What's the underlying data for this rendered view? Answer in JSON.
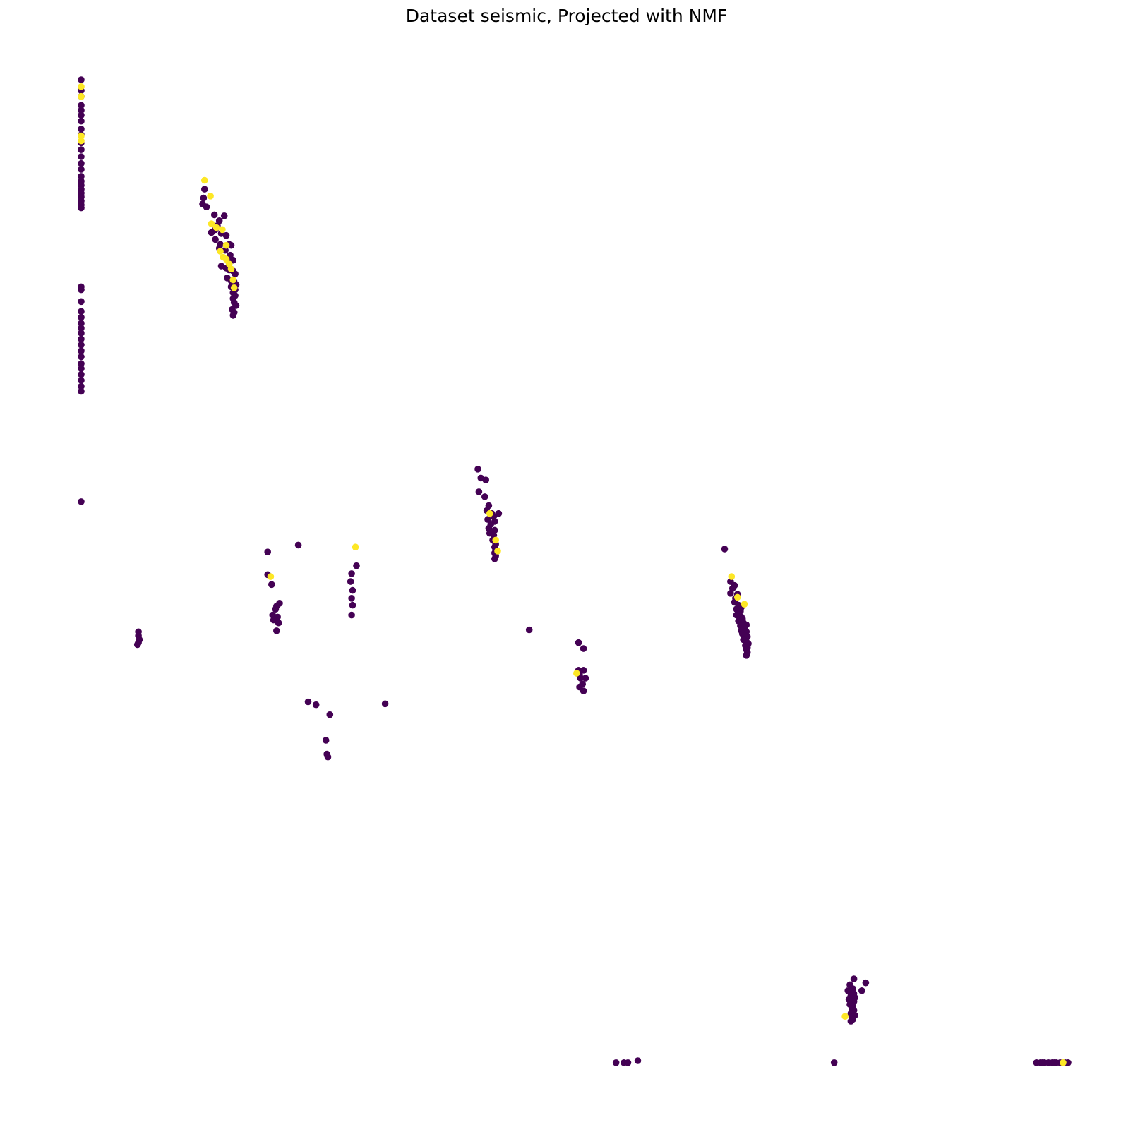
{
  "chart_data": {
    "type": "scatter",
    "title": "Dataset seismic, Projected with NMF",
    "xlabel": "",
    "ylabel": "",
    "axes_visible": false,
    "grid": false,
    "xlim": [
      0,
      1
    ],
    "ylim": [
      0,
      1
    ],
    "colors": {
      "class_0": "#440154",
      "class_1": "#fde725"
    },
    "series": [
      {
        "class": 0,
        "color": "#440154",
        "points": [
          [
            0.0,
            1.0
          ],
          [
            0.0,
            0.989
          ],
          [
            0.0,
            0.983
          ],
          [
            0.0,
            0.974
          ],
          [
            0.0,
            0.969
          ],
          [
            0.0,
            0.964
          ],
          [
            0.0,
            0.958
          ],
          [
            0.0,
            0.95
          ],
          [
            0.0,
            0.944
          ],
          [
            0.0,
            0.936
          ],
          [
            0.0,
            0.929
          ],
          [
            0.0,
            0.922
          ],
          [
            0.0,
            0.915
          ],
          [
            0.0,
            0.909
          ],
          [
            0.0,
            0.902
          ],
          [
            0.0,
            0.897
          ],
          [
            0.0,
            0.893
          ],
          [
            0.0,
            0.889
          ],
          [
            0.0,
            0.885
          ],
          [
            0.0,
            0.881
          ],
          [
            0.0,
            0.877
          ],
          [
            0.0,
            0.873
          ],
          [
            0.0,
            0.87
          ],
          [
            0.0,
            0.79
          ],
          [
            0.0,
            0.787
          ],
          [
            0.0,
            0.775
          ],
          [
            0.0,
            0.765
          ],
          [
            0.0,
            0.759
          ],
          [
            0.0,
            0.753
          ],
          [
            0.0,
            0.748
          ],
          [
            0.0,
            0.743
          ],
          [
            0.0,
            0.737
          ],
          [
            0.0,
            0.731
          ],
          [
            0.0,
            0.725
          ],
          [
            0.0,
            0.719
          ],
          [
            0.0,
            0.712
          ],
          [
            0.0,
            0.707
          ],
          [
            0.0,
            0.701
          ],
          [
            0.0,
            0.695
          ],
          [
            0.0,
            0.689
          ],
          [
            0.0,
            0.684
          ],
          [
            0.0,
            0.572
          ],
          [
            0.125,
            0.889
          ],
          [
            0.124,
            0.88
          ],
          [
            0.123,
            0.874
          ],
          [
            0.127,
            0.871
          ],
          [
            0.135,
            0.863
          ],
          [
            0.145,
            0.862
          ],
          [
            0.14,
            0.857
          ],
          [
            0.138,
            0.852
          ],
          [
            0.136,
            0.848
          ],
          [
            0.132,
            0.845
          ],
          [
            0.142,
            0.844
          ],
          [
            0.147,
            0.842
          ],
          [
            0.136,
            0.838
          ],
          [
            0.141,
            0.833
          ],
          [
            0.15,
            0.833
          ],
          [
            0.152,
            0.832
          ],
          [
            0.14,
            0.829
          ],
          [
            0.146,
            0.827
          ],
          [
            0.151,
            0.822
          ],
          [
            0.154,
            0.817
          ],
          [
            0.149,
            0.816
          ],
          [
            0.142,
            0.811
          ],
          [
            0.147,
            0.809
          ],
          [
            0.15,
            0.807
          ],
          [
            0.154,
            0.806
          ],
          [
            0.156,
            0.803
          ],
          [
            0.148,
            0.799
          ],
          [
            0.152,
            0.796
          ],
          [
            0.155,
            0.795
          ],
          [
            0.157,
            0.792
          ],
          [
            0.152,
            0.79
          ],
          [
            0.156,
            0.787
          ],
          [
            0.154,
            0.784
          ],
          [
            0.156,
            0.781
          ],
          [
            0.154,
            0.778
          ],
          [
            0.155,
            0.774
          ],
          [
            0.157,
            0.771
          ],
          [
            0.153,
            0.767
          ],
          [
            0.155,
            0.764
          ],
          [
            0.154,
            0.761
          ],
          [
            0.058,
            0.44
          ],
          [
            0.058,
            0.436
          ],
          [
            0.059,
            0.432
          ],
          [
            0.058,
            0.429
          ],
          [
            0.057,
            0.427
          ],
          [
            0.189,
            0.521
          ],
          [
            0.189,
            0.498
          ],
          [
            0.193,
            0.488
          ],
          [
            0.201,
            0.469
          ],
          [
            0.198,
            0.466
          ],
          [
            0.197,
            0.463
          ],
          [
            0.194,
            0.457
          ],
          [
            0.199,
            0.455
          ],
          [
            0.195,
            0.452
          ],
          [
            0.2,
            0.449
          ],
          [
            0.198,
            0.441
          ],
          [
            0.22,
            0.528
          ],
          [
            0.279,
            0.507
          ],
          [
            0.274,
            0.499
          ],
          [
            0.273,
            0.491
          ],
          [
            0.275,
            0.482
          ],
          [
            0.274,
            0.474
          ],
          [
            0.275,
            0.467
          ],
          [
            0.274,
            0.457
          ],
          [
            0.23,
            0.369
          ],
          [
            0.238,
            0.366
          ],
          [
            0.252,
            0.356
          ],
          [
            0.248,
            0.33
          ],
          [
            0.249,
            0.316
          ],
          [
            0.25,
            0.313
          ],
          [
            0.308,
            0.367
          ],
          [
            0.402,
            0.605
          ],
          [
            0.405,
            0.596
          ],
          [
            0.41,
            0.594
          ],
          [
            0.403,
            0.582
          ],
          [
            0.409,
            0.577
          ],
          [
            0.413,
            0.568
          ],
          [
            0.411,
            0.563
          ],
          [
            0.416,
            0.56
          ],
          [
            0.423,
            0.56
          ],
          [
            0.418,
            0.557
          ],
          [
            0.412,
            0.554
          ],
          [
            0.419,
            0.552
          ],
          [
            0.415,
            0.549
          ],
          [
            0.413,
            0.545
          ],
          [
            0.419,
            0.543
          ],
          [
            0.414,
            0.54
          ],
          [
            0.418,
            0.538
          ],
          [
            0.417,
            0.533
          ],
          [
            0.419,
            0.532
          ],
          [
            0.42,
            0.529
          ],
          [
            0.419,
            0.526
          ],
          [
            0.42,
            0.523
          ],
          [
            0.419,
            0.52
          ],
          [
            0.42,
            0.517
          ],
          [
            0.419,
            0.514
          ],
          [
            0.454,
            0.442
          ],
          [
            0.504,
            0.429
          ],
          [
            0.509,
            0.423
          ],
          [
            0.504,
            0.401
          ],
          [
            0.509,
            0.401
          ],
          [
            0.505,
            0.396
          ],
          [
            0.506,
            0.393
          ],
          [
            0.511,
            0.393
          ],
          [
            0.508,
            0.387
          ],
          [
            0.505,
            0.384
          ],
          [
            0.509,
            0.38
          ],
          [
            0.542,
            0.003
          ],
          [
            0.55,
            0.003
          ],
          [
            0.554,
            0.003
          ],
          [
            0.564,
            0.005
          ],
          [
            0.652,
            0.524
          ],
          [
            0.658,
            0.491
          ],
          [
            0.662,
            0.487
          ],
          [
            0.66,
            0.484
          ],
          [
            0.658,
            0.479
          ],
          [
            0.665,
            0.478
          ],
          [
            0.663,
            0.474
          ],
          [
            0.662,
            0.47
          ],
          [
            0.666,
            0.467
          ],
          [
            0.669,
            0.465
          ],
          [
            0.664,
            0.463
          ],
          [
            0.668,
            0.461
          ],
          [
            0.664,
            0.457
          ],
          [
            0.669,
            0.455
          ],
          [
            0.67,
            0.453
          ],
          [
            0.666,
            0.451
          ],
          [
            0.671,
            0.449
          ],
          [
            0.674,
            0.447
          ],
          [
            0.668,
            0.446
          ],
          [
            0.672,
            0.444
          ],
          [
            0.669,
            0.441
          ],
          [
            0.674,
            0.44
          ],
          [
            0.67,
            0.438
          ],
          [
            0.673,
            0.436
          ],
          [
            0.675,
            0.435
          ],
          [
            0.671,
            0.432
          ],
          [
            0.674,
            0.43
          ],
          [
            0.676,
            0.428
          ],
          [
            0.673,
            0.426
          ],
          [
            0.675,
            0.424
          ],
          [
            0.674,
            0.422
          ],
          [
            0.675,
            0.419
          ],
          [
            0.674,
            0.416
          ],
          [
            0.763,
            0.003
          ],
          [
            0.783,
            0.088
          ],
          [
            0.779,
            0.082
          ],
          [
            0.782,
            0.078
          ],
          [
            0.777,
            0.076
          ],
          [
            0.783,
            0.073
          ],
          [
            0.78,
            0.071
          ],
          [
            0.784,
            0.069
          ],
          [
            0.778,
            0.067
          ],
          [
            0.783,
            0.065
          ],
          [
            0.779,
            0.062
          ],
          [
            0.782,
            0.06
          ],
          [
            0.781,
            0.058
          ],
          [
            0.783,
            0.056
          ],
          [
            0.78,
            0.053
          ],
          [
            0.784,
            0.051
          ],
          [
            0.781,
            0.049
          ],
          [
            0.782,
            0.047
          ],
          [
            0.78,
            0.045
          ],
          [
            0.791,
            0.076
          ],
          [
            0.795,
            0.084
          ],
          [
            0.968,
            0.003
          ],
          [
            0.972,
            0.003
          ],
          [
            0.976,
            0.003
          ],
          [
            0.98,
            0.003
          ],
          [
            0.984,
            0.003
          ],
          [
            0.988,
            0.003
          ],
          [
            0.992,
            0.003
          ],
          [
            0.997,
            0.003
          ],
          [
            1.0,
            0.003
          ],
          [
            0.974,
            0.003
          ],
          [
            0.986,
            0.003
          ]
        ]
      },
      {
        "class": 1,
        "color": "#fde725",
        "points": [
          [
            0.0,
            0.993
          ],
          [
            0.0,
            0.983
          ],
          [
            0.0,
            0.943
          ],
          [
            0.0,
            0.938
          ],
          [
            0.125,
            0.898
          ],
          [
            0.131,
            0.882
          ],
          [
            0.132,
            0.854
          ],
          [
            0.137,
            0.85
          ],
          [
            0.143,
            0.848
          ],
          [
            0.147,
            0.832
          ],
          [
            0.141,
            0.826
          ],
          [
            0.144,
            0.82
          ],
          [
            0.147,
            0.818
          ],
          [
            0.15,
            0.813
          ],
          [
            0.152,
            0.808
          ],
          [
            0.154,
            0.797
          ],
          [
            0.155,
            0.789
          ],
          [
            0.192,
            0.496
          ],
          [
            0.278,
            0.526
          ],
          [
            0.414,
            0.56
          ],
          [
            0.42,
            0.533
          ],
          [
            0.422,
            0.522
          ],
          [
            0.659,
            0.496
          ],
          [
            0.665,
            0.475
          ],
          [
            0.672,
            0.468
          ],
          [
            0.502,
            0.398
          ],
          [
            0.774,
            0.05
          ],
          [
            0.995,
            0.003
          ]
        ]
      }
    ]
  }
}
